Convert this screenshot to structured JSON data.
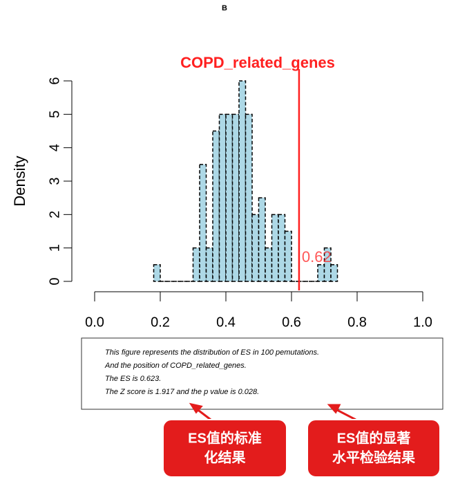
{
  "panel_label": "B",
  "chart_data": {
    "type": "histogram",
    "title": "COPD_related_genes",
    "y_label": "Density",
    "bins": [
      0.18,
      0.2,
      0.22,
      0.24,
      0.26,
      0.28,
      0.3,
      0.32,
      0.34,
      0.36,
      0.38,
      0.4,
      0.42,
      0.44,
      0.46,
      0.48,
      0.5,
      0.52,
      0.54,
      0.56,
      0.58,
      0.6,
      0.62,
      0.64,
      0.66,
      0.68,
      0.7,
      0.72,
      0.74
    ],
    "values": [
      0.5,
      0,
      0,
      0,
      0,
      0,
      1,
      3.5,
      1,
      4.5,
      5,
      5,
      5,
      6,
      5,
      2,
      2.5,
      1,
      2,
      2,
      1.5,
      0,
      0,
      0,
      0,
      0.5,
      1,
      0.5
    ],
    "color": "#add8e6",
    "xlim": [
      0,
      1
    ],
    "xticks": [
      {
        "value": 0,
        "label": "0.0"
      },
      0.2,
      0.4,
      0.6,
      0.8,
      {
        "value": 1,
        "label": "1.0"
      }
    ],
    "ylim": [
      0,
      6
    ],
    "yticks": [
      0,
      1,
      2,
      3,
      4,
      5,
      6
    ],
    "vline": {
      "value": 0.623,
      "label": "0.62",
      "color": "#ff2020"
    }
  },
  "note_lines": [
    "This figure represents the distribution of ES in 100 pemutations.",
    "And the position of COPD_related_genes.",
    "The ES is 0.623.",
    "The Z score is 1.917 and the p value is 0.028."
  ],
  "callouts": [
    [
      "ES值的标准",
      "化结果"
    ],
    [
      "ES值的显著",
      "水平检验结果"
    ]
  ]
}
